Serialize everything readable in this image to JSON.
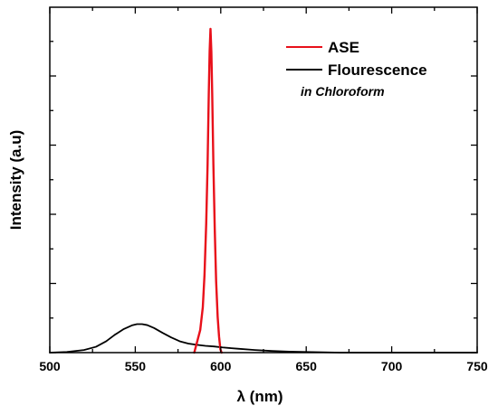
{
  "chart_data": {
    "type": "line",
    "xlabel": "λ (nm)",
    "ylabel": "Intensity (a.u)",
    "xlim": [
      500,
      750
    ],
    "ylim": [
      0,
      1
    ],
    "xticks": [
      500,
      550,
      600,
      650,
      700,
      750
    ],
    "x_tick_labels": [
      "500",
      "550",
      "600",
      "650",
      "700",
      "750"
    ],
    "show_y_tick_labels": false,
    "grid": false,
    "legend_position": "top-right",
    "annotation": "in Chloroform",
    "series": [
      {
        "name": "ASE",
        "color": "#e8101a",
        "points": [
          [
            584.5,
            0.0
          ],
          [
            586,
            0.03
          ],
          [
            588,
            0.07
          ],
          [
            589.5,
            0.14
          ],
          [
            590.5,
            0.24
          ],
          [
            591.5,
            0.4
          ],
          [
            592.3,
            0.58
          ],
          [
            593,
            0.8
          ],
          [
            593.5,
            0.93
          ],
          [
            594,
            1.0
          ],
          [
            594.5,
            0.93
          ],
          [
            595,
            0.8
          ],
          [
            595.7,
            0.58
          ],
          [
            596.5,
            0.38
          ],
          [
            597.3,
            0.22
          ],
          [
            598.2,
            0.11
          ],
          [
            599,
            0.05
          ],
          [
            599.8,
            0.01
          ],
          [
            600.5,
            0.0
          ]
        ]
      },
      {
        "name": "Flourescence",
        "color": "#000000",
        "points": [
          [
            500,
            0.0
          ],
          [
            510,
            0.002
          ],
          [
            520,
            0.008
          ],
          [
            527,
            0.018
          ],
          [
            533,
            0.035
          ],
          [
            538,
            0.055
          ],
          [
            543,
            0.072
          ],
          [
            548,
            0.084
          ],
          [
            551,
            0.088
          ],
          [
            554,
            0.088
          ],
          [
            557,
            0.085
          ],
          [
            561,
            0.076
          ],
          [
            566,
            0.061
          ],
          [
            571,
            0.047
          ],
          [
            576,
            0.035
          ],
          [
            581,
            0.028
          ],
          [
            586,
            0.024
          ],
          [
            591,
            0.021
          ],
          [
            596,
            0.019
          ],
          [
            601,
            0.016
          ],
          [
            610,
            0.012
          ],
          [
            620,
            0.008
          ],
          [
            630,
            0.005
          ],
          [
            640,
            0.003
          ],
          [
            650,
            0.002
          ],
          [
            660,
            0.001
          ],
          [
            670,
            0.0
          ],
          [
            750,
            0.0
          ]
        ]
      }
    ]
  }
}
